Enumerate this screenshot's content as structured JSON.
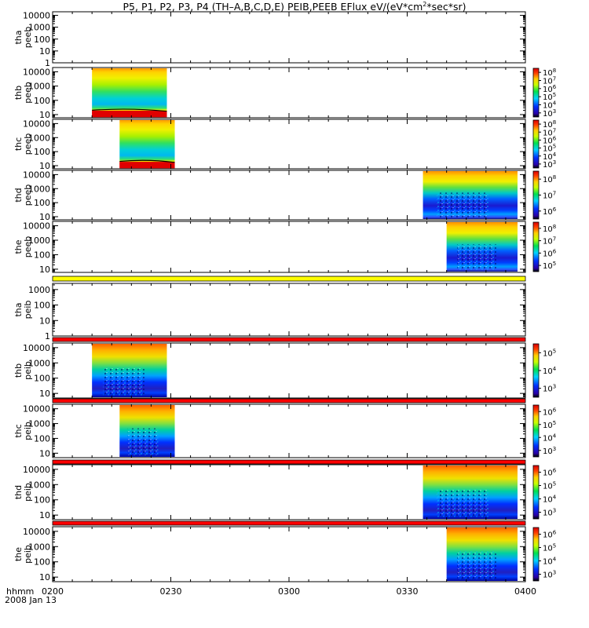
{
  "chart_data": {
    "type": "heatmap",
    "title": "P5, P1, P2, P3, P4 (TH-A,B,C,D,E) PEIB,PEEB EFlux eV/(eV*cm2*sec*sr)",
    "title_parts": {
      "prefix": "P5, P1, P2, P3, P4 (TH–A,B,C,D,E) PEIB,PEEB EFlux eV/(eV*cm",
      "sup": "2",
      "suffix": "*sec*sr)"
    },
    "x_axis": {
      "label": "hhmm",
      "date_label": "2008 Jan 13",
      "ticks": [
        "0200",
        "0230",
        "0300",
        "0330",
        "0400"
      ],
      "range": [
        "02:00",
        "04:00"
      ]
    },
    "panels": [
      {
        "probe": "tha",
        "type": "peeb",
        "yticks": [
          "1",
          "10",
          "100",
          "1000",
          "10000"
        ],
        "ylim": [
          1,
          20000
        ],
        "data": [],
        "colorbar": false
      },
      {
        "probe": "thb",
        "type": "peeb",
        "yticks": [
          "10",
          "100",
          "1000",
          "10000"
        ],
        "ylim": [
          6,
          20000
        ],
        "colorbar_exponents": [
          "3",
          "4",
          "5",
          "6",
          "7",
          "8"
        ],
        "data": [
          {
            "start": "02:10",
            "end": "02:29",
            "style": "electron"
          }
        ]
      },
      {
        "probe": "thc",
        "type": "peeb",
        "yticks": [
          "10",
          "100",
          "1000",
          "10000"
        ],
        "ylim": [
          6,
          20000
        ],
        "colorbar_exponents": [
          "3",
          "4",
          "5",
          "6",
          "7",
          "8"
        ],
        "data": [
          {
            "start": "02:17",
            "end": "02:31",
            "style": "electron"
          }
        ]
      },
      {
        "probe": "thd",
        "type": "peeb",
        "yticks": [
          "10",
          "100",
          "1000",
          "10000"
        ],
        "ylim": [
          6,
          20000
        ],
        "colorbar_exponents": [
          "6",
          "7",
          "8"
        ],
        "data": [
          {
            "start": "03:34",
            "end": "03:58",
            "style": "electron-d"
          }
        ]
      },
      {
        "probe": "the",
        "type": "peeb",
        "yticks": [
          "10",
          "100",
          "1000",
          "10000"
        ],
        "ylim": [
          6,
          20000
        ],
        "colorbar_exponents": [
          "5",
          "6",
          "7",
          "8"
        ],
        "data": [
          {
            "start": "03:40",
            "end": "03:58",
            "style": "electron-d"
          }
        ]
      },
      {
        "probe": "tha",
        "type": "peib",
        "yticks": [
          "1",
          "10",
          "100",
          "1000"
        ],
        "ylim": [
          1,
          2500
        ],
        "data": [],
        "colorbar": false
      },
      {
        "probe": "thb",
        "type": "peib",
        "yticks": [
          "10",
          "100",
          "1000",
          "10000"
        ],
        "ylim": [
          5,
          20000
        ],
        "colorbar_exponents": [
          "3",
          "4",
          "5"
        ],
        "data": [
          {
            "start": "02:10",
            "end": "02:29",
            "style": "ion"
          }
        ]
      },
      {
        "probe": "thc",
        "type": "peib",
        "yticks": [
          "10",
          "100",
          "1000",
          "10000"
        ],
        "ylim": [
          5,
          20000
        ],
        "colorbar_exponents": [
          "3",
          "4",
          "5",
          "6"
        ],
        "data": [
          {
            "start": "02:17",
            "end": "02:31",
            "style": "ion"
          }
        ]
      },
      {
        "probe": "thd",
        "type": "peib",
        "yticks": [
          "10",
          "100",
          "1000",
          "10000"
        ],
        "ylim": [
          5,
          20000
        ],
        "colorbar_exponents": [
          "3",
          "4",
          "5",
          "6"
        ],
        "data": [
          {
            "start": "03:34",
            "end": "03:58",
            "style": "ion"
          }
        ]
      },
      {
        "probe": "the",
        "type": "peib",
        "yticks": [
          "10",
          "100",
          "1000",
          "10000"
        ],
        "ylim": [
          5,
          20000
        ],
        "colorbar_exponents": [
          "3",
          "4",
          "5",
          "6"
        ],
        "data": [
          {
            "start": "03:40",
            "end": "03:58",
            "style": "ion"
          }
        ]
      }
    ],
    "flag_bars": [
      {
        "after_panel": 4,
        "color": "#ffff00"
      },
      {
        "after_panel": 5,
        "color": "#ff0000"
      },
      {
        "after_panel": 6,
        "color": "#ff0000"
      },
      {
        "after_panel": 7,
        "color": "#ff0000"
      },
      {
        "after_panel": 8,
        "color": "#ff0000"
      }
    ],
    "colorbar_base": "10",
    "colors": {
      "ion_flag": "#ff0000",
      "mode_flag": "#ffff00",
      "axes": "#000000",
      "background": "#ffffff"
    }
  }
}
